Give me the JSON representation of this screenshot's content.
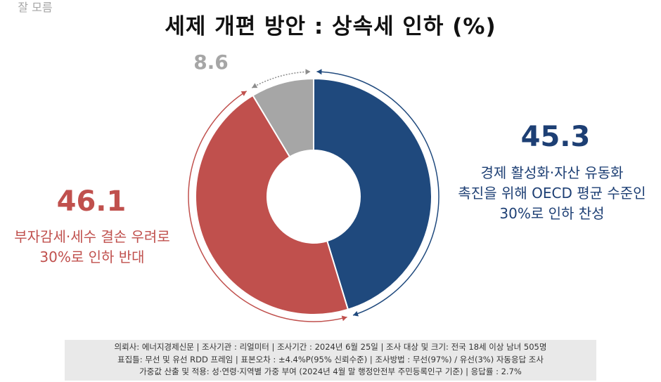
{
  "title": "세제 개편 방안 : 상속세 인하 (%)",
  "chart_data": {
    "type": "pie",
    "donut": true,
    "slices": [
      {
        "label": "경제 활성화·자산 유동화 촉진을 위해 OECD 평균 수준인 30%로 인하 찬성",
        "value": 45.3,
        "color": "#1f497d"
      },
      {
        "label": "부자감세·세수 결손 우려로 30%로 인하 반대",
        "value": 46.1,
        "color": "#c0504d"
      },
      {
        "label": "잘 모름",
        "value": 8.6,
        "color": "#a6a6a6"
      }
    ]
  },
  "annotations": {
    "blue": {
      "value": "45.3",
      "lines": [
        "경제 활성화·자산 유동화",
        "촉진을 위해 OECD 평균 수준인",
        "30%로 인하 찬성"
      ]
    },
    "red": {
      "value": "46.1",
      "lines": [
        "부자감세·세수 결손 우려로",
        "30%로 인하 반대"
      ]
    },
    "gray": {
      "value": "8.6",
      "label": "잘 모름"
    }
  },
  "footer": {
    "lines": [
      "의뢰사: 에너지경제신문 | 조사기관 : 리얼미터  |  조사기간 : 2024년 6월 25일 | 조사 대상 및 크기: 전국 18세 이상 남녀 505명",
      "표집틀: 무선 및 유선 RDD 프레임 | 표본오차 : ±4.4%P(95% 신뢰수준) | 조사방법 : 무선(97%) / 유선(3%) 자동응답 조사",
      "가중값 산출 및 적용: 성·연령·지역별 가중 부여 (2024년 4월 말 행정안전부 주민등록인구 기준) | 응답률 : 2.7%"
    ]
  }
}
